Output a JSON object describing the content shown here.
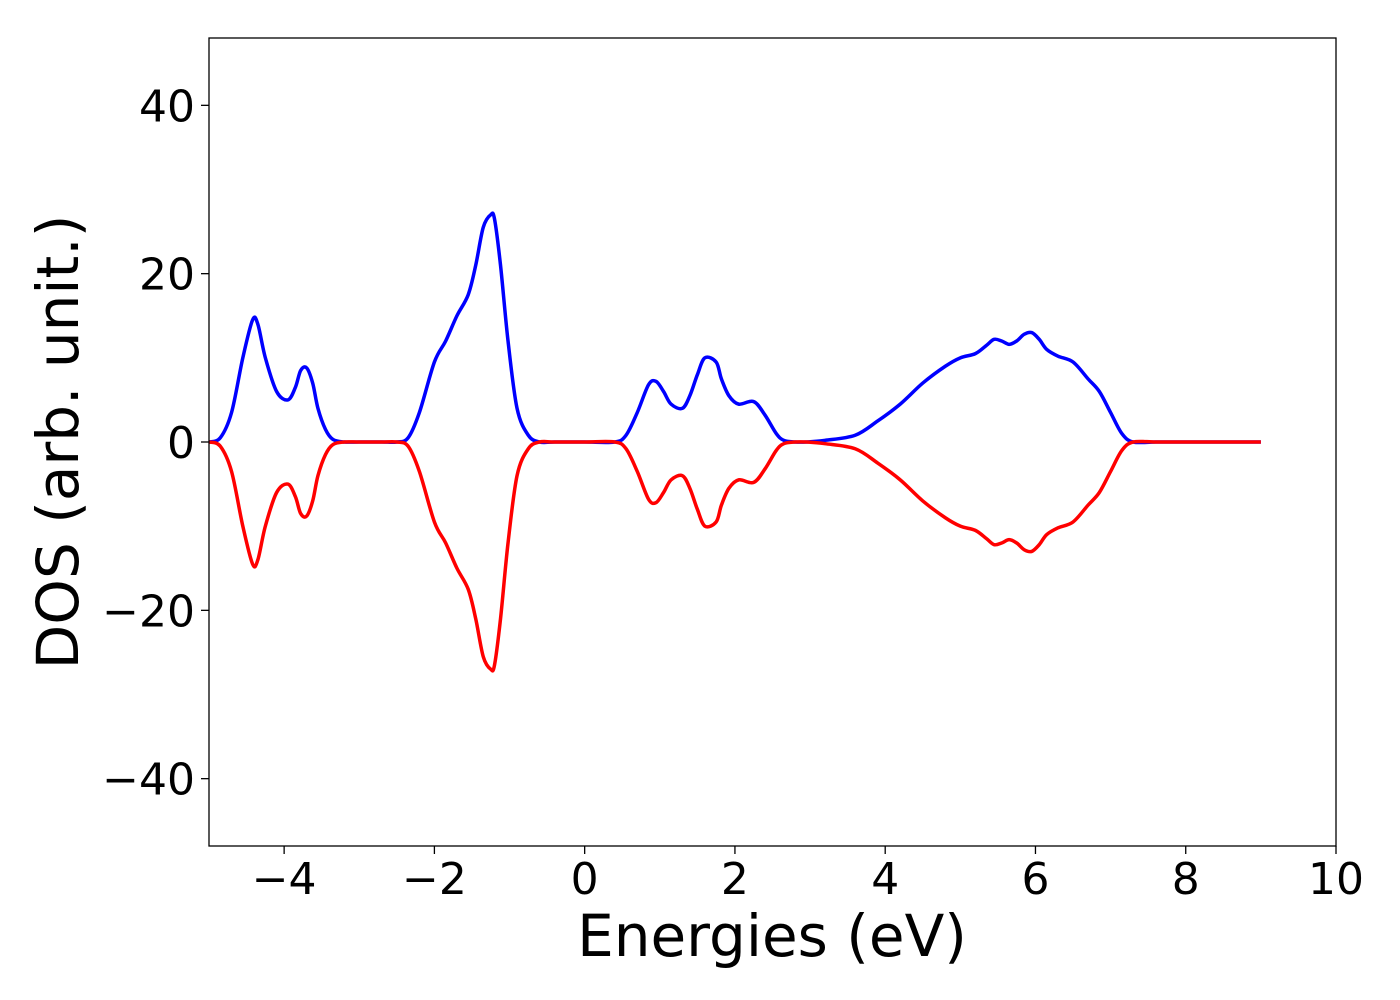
{
  "chart_data": {
    "type": "line",
    "title": "",
    "xlabel": "Energies (eV)",
    "ylabel": "DOS (arb. unit.)",
    "xlim": [
      -5,
      10
    ],
    "ylim": [
      -48,
      48
    ],
    "x_ticks": [
      -4,
      -2,
      0,
      2,
      4,
      6,
      8,
      10
    ],
    "x_tick_labels": [
      "−4",
      "−2",
      "0",
      "2",
      "4",
      "6",
      "8",
      "10"
    ],
    "y_ticks": [
      -40,
      -20,
      0,
      20,
      40
    ],
    "y_tick_labels": [
      "−40",
      "−20",
      "0",
      "20",
      "40"
    ],
    "grid": false,
    "legend": "none",
    "series": [
      {
        "color": "#0000ff",
        "x": [
          -5.0,
          -4.85,
          -4.7,
          -4.55,
          -4.42,
          -4.35,
          -4.25,
          -4.1,
          -3.95,
          -3.85,
          -3.78,
          -3.7,
          -3.62,
          -3.55,
          -3.45,
          -3.35,
          -3.2,
          -3.0,
          -2.7,
          -2.5,
          -2.35,
          -2.2,
          -2.0,
          -1.85,
          -1.7,
          -1.55,
          -1.45,
          -1.35,
          -1.25,
          -1.2,
          -1.12,
          -1.02,
          -0.9,
          -0.75,
          -0.6,
          -0.4,
          0.0,
          0.4,
          0.55,
          0.7,
          0.85,
          0.95,
          1.05,
          1.15,
          1.3,
          1.4,
          1.5,
          1.6,
          1.75,
          1.82,
          1.92,
          2.05,
          2.25,
          2.4,
          2.55,
          2.65,
          2.8,
          2.95,
          3.2,
          3.6,
          3.9,
          4.2,
          4.5,
          4.8,
          5.0,
          5.2,
          5.35,
          5.45,
          5.55,
          5.65,
          5.75,
          5.85,
          5.95,
          6.05,
          6.15,
          6.3,
          6.5,
          6.7,
          6.85,
          7.0,
          7.15,
          7.3,
          7.6,
          8.0,
          8.5,
          9.0
        ],
        "y": [
          0.0,
          0.5,
          3.5,
          10.0,
          14.5,
          14.0,
          10.0,
          6.0,
          5.0,
          6.5,
          8.5,
          8.8,
          7.0,
          4.0,
          1.5,
          0.3,
          0.0,
          0.0,
          0.0,
          0.0,
          0.5,
          3.5,
          9.5,
          12.0,
          15.0,
          17.5,
          21.0,
          25.5,
          27.0,
          26.5,
          21.0,
          12.0,
          4.0,
          0.8,
          0.0,
          0.0,
          0.0,
          0.0,
          0.8,
          3.5,
          6.8,
          7.2,
          6.0,
          4.5,
          4.0,
          5.5,
          8.0,
          10.0,
          9.5,
          7.5,
          5.5,
          4.5,
          4.8,
          3.2,
          1.0,
          0.2,
          0.0,
          0.0,
          0.2,
          0.8,
          2.5,
          4.5,
          7.0,
          9.0,
          10.0,
          10.5,
          11.5,
          12.2,
          12.0,
          11.6,
          12.0,
          12.8,
          13.0,
          12.2,
          11.0,
          10.2,
          9.5,
          7.5,
          6.0,
          3.5,
          1.0,
          0.0,
          0.0,
          0.0,
          0.0,
          0.0
        ]
      },
      {
        "color": "#ff0000",
        "x": [
          -5.0,
          -4.85,
          -4.7,
          -4.55,
          -4.42,
          -4.35,
          -4.25,
          -4.1,
          -3.95,
          -3.85,
          -3.78,
          -3.7,
          -3.62,
          -3.55,
          -3.45,
          -3.35,
          -3.2,
          -3.0,
          -2.7,
          -2.5,
          -2.35,
          -2.2,
          -2.0,
          -1.85,
          -1.7,
          -1.55,
          -1.45,
          -1.35,
          -1.25,
          -1.2,
          -1.12,
          -1.02,
          -0.9,
          -0.75,
          -0.6,
          -0.4,
          0.0,
          0.4,
          0.55,
          0.7,
          0.85,
          0.95,
          1.05,
          1.15,
          1.3,
          1.4,
          1.5,
          1.6,
          1.75,
          1.82,
          1.92,
          2.05,
          2.25,
          2.4,
          2.55,
          2.65,
          2.8,
          2.95,
          3.2,
          3.6,
          3.9,
          4.2,
          4.5,
          4.8,
          5.0,
          5.2,
          5.35,
          5.45,
          5.55,
          5.65,
          5.75,
          5.85,
          5.95,
          6.05,
          6.15,
          6.3,
          6.5,
          6.7,
          6.85,
          7.0,
          7.15,
          7.3,
          7.6,
          8.0,
          8.5,
          9.0
        ],
        "y": [
          0.0,
          -0.5,
          -3.5,
          -10.0,
          -14.5,
          -14.0,
          -10.0,
          -6.0,
          -5.0,
          -6.5,
          -8.5,
          -8.8,
          -7.0,
          -4.0,
          -1.5,
          -0.3,
          0.0,
          0.0,
          0.0,
          0.0,
          -0.5,
          -3.5,
          -9.5,
          -12.0,
          -15.0,
          -17.5,
          -21.0,
          -25.5,
          -27.0,
          -26.5,
          -21.0,
          -12.0,
          -4.0,
          -0.8,
          0.0,
          0.0,
          0.0,
          0.0,
          -0.8,
          -3.5,
          -6.8,
          -7.2,
          -6.0,
          -4.5,
          -4.0,
          -5.5,
          -8.0,
          -10.0,
          -9.5,
          -7.5,
          -5.5,
          -4.5,
          -4.8,
          -3.2,
          -1.0,
          -0.2,
          0.0,
          0.0,
          -0.2,
          -0.8,
          -2.5,
          -4.5,
          -7.0,
          -9.0,
          -10.0,
          -10.5,
          -11.5,
          -12.2,
          -12.0,
          -11.6,
          -12.0,
          -12.8,
          -13.0,
          -12.2,
          -11.0,
          -10.2,
          -9.5,
          -7.5,
          -6.0,
          -3.5,
          -1.0,
          0.0,
          0.0,
          0.0,
          0.0,
          0.0
        ]
      }
    ]
  }
}
